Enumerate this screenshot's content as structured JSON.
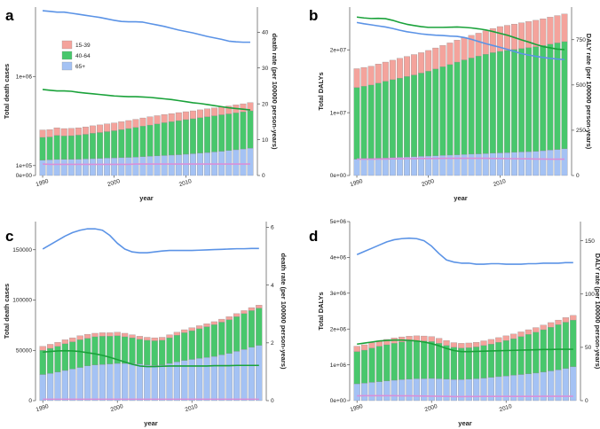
{
  "colors": {
    "c65": "#a4c2f4",
    "c4064": "#48c76c",
    "c1539": "#f4a39c",
    "blue_line": "#5b93e6",
    "green_line": "#1aa23a",
    "pink_line": "#d98fd8"
  },
  "legend": [
    "15-39",
    "40-64",
    "65+"
  ],
  "chart_data": [
    {
      "panel": "a",
      "type": "bar",
      "stacked": true,
      "x": [
        1990,
        1991,
        1992,
        1993,
        1994,
        1995,
        1996,
        1997,
        1998,
        1999,
        2000,
        2001,
        2002,
        2003,
        2004,
        2005,
        2006,
        2007,
        2008,
        2009,
        2010,
        2011,
        2012,
        2013,
        2014,
        2015,
        2016,
        2017,
        2018,
        2019
      ],
      "series": [
        {
          "name": "65+",
          "values": [
            155000,
            158000,
            162000,
            163000,
            164000,
            165000,
            167000,
            170000,
            173000,
            176000,
            178000,
            180000,
            183000,
            186000,
            190000,
            194000,
            198000,
            202000,
            206000,
            210000,
            215000,
            220000,
            226000,
            232000,
            238000,
            245000,
            252000,
            260000,
            268000,
            276000
          ]
        },
        {
          "name": "40-64",
          "values": [
            230000,
            231000,
            243000,
            236000,
            238000,
            243000,
            249000,
            256000,
            261000,
            267000,
            274000,
            283000,
            291000,
            299000,
            308000,
            315000,
            322000,
            331000,
            337000,
            344000,
            349000,
            353000,
            357000,
            361000,
            365000,
            368000,
            370000,
            372000,
            374000,
            377000
          ]
        },
        {
          "name": "15-39",
          "values": [
            75000,
            74000,
            77000,
            75000,
            74000,
            74000,
            75000,
            76000,
            77000,
            78000,
            79000,
            80000,
            81000,
            82000,
            83000,
            84000,
            84000,
            83000,
            82000,
            81000,
            80000,
            80000,
            80000,
            80000,
            80000,
            80000,
            80000,
            81000,
            82000,
            83000
          ]
        }
      ],
      "y_ticks": [
        0,
        100000,
        1000000
      ],
      "y_tick_labels": [
        "0e+00",
        "1e+05",
        "1e+06"
      ],
      "ylim": [
        0,
        1700000
      ],
      "xlabel": "year",
      "ylabel": "Total death cases",
      "y2label": "death rate (per 100000 person-years)",
      "y2_ticks": [
        0,
        10,
        20,
        30,
        40
      ],
      "y2lim": [
        0,
        47
      ],
      "lines": [
        {
          "name": "blue",
          "values": [
            46,
            45.8,
            45.6,
            45.6,
            45.3,
            45,
            44.7,
            44.4,
            44.1,
            43.7,
            43.3,
            43,
            42.9,
            42.9,
            42.8,
            42.4,
            42,
            41.6,
            41.1,
            40.6,
            40.2,
            39.8,
            39.3,
            38.8,
            38.4,
            38,
            37.5,
            37.3,
            37.2,
            37.2
          ]
        },
        {
          "name": "green",
          "values": [
            24,
            23.8,
            23.6,
            23.6,
            23.5,
            23.2,
            23,
            22.8,
            22.6,
            22.4,
            22.2,
            22.1,
            22,
            22,
            21.9,
            21.8,
            21.6,
            21.4,
            21.2,
            20.9,
            20.6,
            20.3,
            20.1,
            19.8,
            19.5,
            19.2,
            18.9,
            18.7,
            18.5,
            18.3
          ]
        },
        {
          "name": "pink",
          "values": [
            3.2,
            3.1,
            3.1,
            3.1,
            3.1,
            3.1,
            3.1,
            3.1,
            3.1,
            3.1,
            3.1,
            3.1,
            3.1,
            3.2,
            3.2,
            3.2,
            3.2,
            3.2,
            3.2,
            3.2,
            3.2,
            3.2,
            3.2,
            3.2,
            3.2,
            3.2,
            3.2,
            3.2,
            3.2,
            3.2
          ]
        }
      ]
    },
    {
      "panel": "b",
      "type": "bar",
      "stacked": true,
      "x": [
        1990,
        1991,
        1992,
        1993,
        1994,
        1995,
        1996,
        1997,
        1998,
        1999,
        2000,
        2001,
        2002,
        2003,
        2004,
        2005,
        2006,
        2007,
        2008,
        2009,
        2010,
        2011,
        2012,
        2013,
        2014,
        2015,
        2016,
        2017,
        2018,
        2019
      ],
      "series": [
        {
          "name": "65+",
          "values": [
            2600000,
            2650000,
            2700000,
            2750000,
            2800000,
            2850000,
            2900000,
            2950000,
            3000000,
            3050000,
            3100000,
            3150000,
            3200000,
            3250000,
            3300000,
            3350000,
            3400000,
            3450000,
            3500000,
            3550000,
            3600000,
            3650000,
            3700000,
            3750000,
            3800000,
            3850000,
            3950000,
            4050000,
            4150000,
            4250000
          ]
        },
        {
          "name": "40-64",
          "values": [
            11400000,
            11550000,
            11700000,
            11950000,
            12200000,
            12400000,
            12600000,
            12800000,
            13000000,
            13250000,
            13500000,
            13800000,
            14100000,
            14400000,
            14750000,
            15050000,
            15300000,
            15550000,
            15800000,
            16000000,
            16150000,
            16250000,
            16350000,
            16450000,
            16550000,
            16650000,
            16750000,
            16850000,
            16950000,
            17050000
          ]
        },
        {
          "name": "15-39",
          "values": [
            3000000,
            3000000,
            3000000,
            3050000,
            3050000,
            3100000,
            3150000,
            3200000,
            3250000,
            3250000,
            3300000,
            3350000,
            3400000,
            3450000,
            3500000,
            3550000,
            3600000,
            3650000,
            3750000,
            3850000,
            3950000,
            4000000,
            4050000,
            4100000,
            4150000,
            4200000,
            4250000,
            4300000,
            4350000,
            4400000
          ]
        }
      ],
      "y_ticks": [
        0,
        10000000,
        20000000
      ],
      "y_tick_labels": [
        "0e+00",
        "1e+07",
        "2e+07"
      ],
      "ylim": [
        0,
        26800000
      ],
      "xlabel": "year",
      "ylabel": "Total DALYs",
      "y2label": "DALY rate (per 100000 person-years)",
      "y2_ticks": [
        0,
        250,
        500,
        750
      ],
      "y2lim": [
        0,
        930
      ],
      "lines": [
        {
          "name": "green",
          "values": [
            875,
            870,
            867,
            868,
            866,
            857,
            845,
            835,
            828,
            822,
            818,
            818,
            818,
            819,
            820,
            818,
            815,
            810,
            804,
            795,
            785,
            775,
            762,
            749,
            737,
            724,
            712,
            705,
            698,
            695
          ]
        },
        {
          "name": "blue",
          "values": [
            845,
            838,
            832,
            826,
            820,
            812,
            802,
            794,
            788,
            782,
            778,
            775,
            773,
            770,
            768,
            762,
            752,
            740,
            728,
            718,
            708,
            697,
            685,
            673,
            665,
            658,
            652,
            647,
            643,
            640
          ]
        },
        {
          "name": "pink",
          "values": [
            90,
            90,
            90,
            91,
            91,
            92,
            92,
            93,
            93,
            94,
            94,
            94,
            95,
            95,
            95,
            95,
            95,
            95,
            95,
            94,
            94,
            93,
            93,
            92,
            92,
            91,
            91,
            90,
            90,
            90
          ]
        }
      ]
    },
    {
      "panel": "c",
      "type": "bar",
      "stacked": true,
      "x": [
        1990,
        1991,
        1992,
        1993,
        1994,
        1995,
        1996,
        1997,
        1998,
        1999,
        2000,
        2001,
        2002,
        2003,
        2004,
        2005,
        2006,
        2007,
        2008,
        2009,
        2010,
        2011,
        2012,
        2013,
        2014,
        2015,
        2016,
        2017,
        2018,
        2019
      ],
      "series": [
        {
          "name": "65+",
          "values": [
            26000,
            27000,
            28500,
            30000,
            31500,
            33000,
            34500,
            35500,
            36000,
            36500,
            37000,
            37000,
            37000,
            36500,
            35500,
            35000,
            35500,
            37000,
            38500,
            40000,
            41000,
            42000,
            43000,
            44000,
            45500,
            47000,
            49000,
            51000,
            53000,
            55000
          ]
        },
        {
          "name": "40-64",
          "values": [
            24000,
            25000,
            25500,
            26500,
            27000,
            27500,
            27500,
            28000,
            28000,
            27500,
            27500,
            26500,
            25500,
            24500,
            24500,
            24500,
            24500,
            25500,
            26500,
            27500,
            28500,
            29500,
            30500,
            31500,
            32500,
            33500,
            34500,
            35500,
            36500,
            37000
          ]
        },
        {
          "name": "15-39",
          "values": [
            4000,
            4000,
            4000,
            4000,
            4000,
            4000,
            4000,
            3500,
            3500,
            3500,
            3500,
            3500,
            3000,
            3000,
            3000,
            3000,
            3000,
            3000,
            3000,
            3000,
            3000,
            3000,
            3000,
            3000,
            3000,
            3000,
            3000,
            3000,
            3000,
            3000
          ]
        }
      ],
      "y_ticks": [
        0,
        50000,
        100000,
        150000
      ],
      "y_tick_labels": [
        "0",
        "50000",
        "100000",
        "150000"
      ],
      "ylim": [
        0,
        178000
      ],
      "xlabel": "year",
      "ylabel": "Total death cases",
      "y2label": "death rate (per 100000 person-years)",
      "y2_ticks": [
        0,
        2,
        4,
        6
      ],
      "y2lim": [
        0,
        6.2
      ],
      "lines": [
        {
          "name": "blue",
          "values": [
            5.25,
            5.4,
            5.55,
            5.7,
            5.82,
            5.9,
            5.95,
            5.95,
            5.9,
            5.72,
            5.45,
            5.25,
            5.15,
            5.12,
            5.12,
            5.15,
            5.18,
            5.2,
            5.2,
            5.2,
            5.2,
            5.21,
            5.22,
            5.23,
            5.24,
            5.25,
            5.26,
            5.26,
            5.27,
            5.27
          ]
        },
        {
          "name": "green",
          "values": [
            1.68,
            1.7,
            1.72,
            1.73,
            1.72,
            1.7,
            1.66,
            1.62,
            1.57,
            1.5,
            1.42,
            1.34,
            1.26,
            1.2,
            1.18,
            1.18,
            1.19,
            1.2,
            1.2,
            1.2,
            1.2,
            1.2,
            1.2,
            1.21,
            1.21,
            1.21,
            1.22,
            1.22,
            1.22,
            1.22
          ]
        },
        {
          "name": "pink",
          "values": [
            0.05,
            0.05,
            0.05,
            0.05,
            0.05,
            0.05,
            0.05,
            0.05,
            0.05,
            0.05,
            0.05,
            0.05,
            0.05,
            0.05,
            0.05,
            0.05,
            0.05,
            0.05,
            0.05,
            0.05,
            0.05,
            0.05,
            0.05,
            0.05,
            0.05,
            0.05,
            0.05,
            0.05,
            0.05,
            0.05
          ]
        }
      ]
    },
    {
      "panel": "d",
      "type": "bar",
      "stacked": true,
      "x": [
        1990,
        1991,
        1992,
        1993,
        1994,
        1995,
        1996,
        1997,
        1998,
        1999,
        2000,
        2001,
        2002,
        2003,
        2004,
        2005,
        2006,
        2007,
        2008,
        2009,
        2010,
        2011,
        2012,
        2013,
        2014,
        2015,
        2016,
        2017,
        2018,
        2019
      ],
      "series": [
        {
          "name": "65+",
          "values": [
            470000,
            490000,
            510000,
            530000,
            550000,
            570000,
            590000,
            600000,
            610000,
            615000,
            620000,
            610000,
            600000,
            590000,
            590000,
            600000,
            610000,
            630000,
            650000,
            670000,
            690000,
            710000,
            730000,
            750000,
            770000,
            800000,
            830000,
            860000,
            900000,
            950000
          ]
        },
        {
          "name": "40-64",
          "values": [
            900000,
            920000,
            960000,
            990000,
            1010000,
            1030000,
            1050000,
            1060000,
            1060000,
            1050000,
            1030000,
            990000,
            940000,
            900000,
            880000,
            880000,
            890000,
            910000,
            930000,
            960000,
            990000,
            1020000,
            1060000,
            1100000,
            1140000,
            1180000,
            1220000,
            1260000,
            1290000,
            1300000
          ]
        },
        {
          "name": "15-39",
          "values": [
            150000,
            150000,
            150000,
            150000,
            150000,
            150000,
            140000,
            140000,
            140000,
            140000,
            140000,
            140000,
            140000,
            130000,
            130000,
            130000,
            130000,
            130000,
            130000,
            130000,
            130000,
            130000,
            130000,
            130000,
            130000,
            130000,
            130000,
            130000,
            130000,
            130000
          ]
        }
      ],
      "y_ticks": [
        0,
        1000000,
        2000000,
        3000000,
        4000000,
        5000000
      ],
      "y_tick_labels": [
        "0e+00",
        "1e+06",
        "2e+06",
        "3e+06",
        "4e+06",
        "5e+06"
      ],
      "ylim": [
        0,
        5000000
      ],
      "xlabel": "year",
      "ylabel": "Total DALYs",
      "y2label": "DALY rate (per 100000 person-years)",
      "y2_ticks": [
        0,
        50,
        100,
        150
      ],
      "y2lim": [
        0,
        168
      ],
      "lines": [
        {
          "name": "blue",
          "values": [
            137,
            140,
            143,
            146,
            149,
            151,
            152,
            152.5,
            152,
            150,
            145,
            138,
            132,
            130,
            129,
            129,
            128,
            128,
            128.5,
            128.5,
            128,
            128,
            128,
            128.5,
            128.5,
            129,
            129,
            129,
            129.5,
            129.5
          ]
        },
        {
          "name": "green",
          "values": [
            53,
            54,
            55,
            56,
            56.5,
            56.8,
            56.8,
            56.5,
            56,
            55,
            53.5,
            51.5,
            49,
            47,
            46,
            46,
            46.2,
            46.4,
            46.6,
            46.8,
            47,
            47.2,
            47.4,
            47.6,
            47.8,
            48,
            48,
            48.2,
            48.2,
            48.2
          ]
        },
        {
          "name": "pink",
          "values": [
            4.5,
            4.6,
            4.6,
            4.6,
            4.6,
            4.6,
            4.5,
            4.5,
            4.4,
            4.3,
            4.2,
            4.1,
            4,
            3.8,
            3.8,
            3.9,
            3.9,
            4,
            4,
            4,
            4,
            4,
            4,
            4,
            4,
            4.1,
            4.1,
            4.1,
            4.1,
            4.1
          ]
        }
      ]
    }
  ]
}
